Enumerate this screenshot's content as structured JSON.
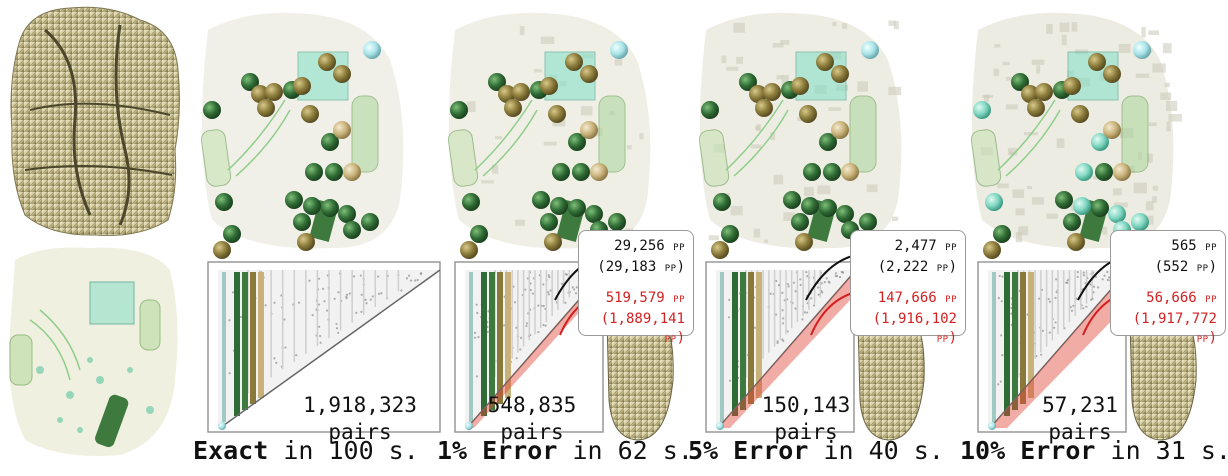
{
  "panels": [
    {
      "id": "exact",
      "bold": "Exact",
      "rest": " in 100 s.",
      "pairs_count": "1,918,323",
      "pairs_word": "pairs",
      "noise": 0.0
    },
    {
      "id": "e1",
      "bold": "1% Error",
      "rest": " in 62 s.",
      "pairs_count": "548,835",
      "pairs_word": "pairs",
      "noise": 0.33,
      "black_value": "29,256",
      "black_exact": "(29,183",
      "red_value": "519,579",
      "red_exact": "(1,889,141",
      "unit": "PP"
    },
    {
      "id": "e5",
      "bold": "5% Error",
      "rest": " in 40 s.",
      "pairs_count": "150,143",
      "pairs_word": "pairs",
      "noise": 0.66,
      "black_value": "2,477",
      "black_exact": "(2,222",
      "red_value": "147,666",
      "red_exact": "(1,916,102",
      "unit": "PP"
    },
    {
      "id": "e10",
      "bold": "10% Error",
      "rest": " in 31 s.",
      "pairs_count": "57,231",
      "pairs_word": "pairs",
      "noise": 1.0,
      "black_value": "565",
      "black_exact": "(552",
      "red_value": "56,666",
      "red_exact": "(1,917,772",
      "unit": "PP"
    }
  ],
  "colors": {
    "dark_green": "#2f6b34",
    "olive": "#8a7a3a",
    "tan": "#c9b27a",
    "teal": "#7fd6c0",
    "red": "#d42020",
    "mesh": "#ded6a8"
  }
}
